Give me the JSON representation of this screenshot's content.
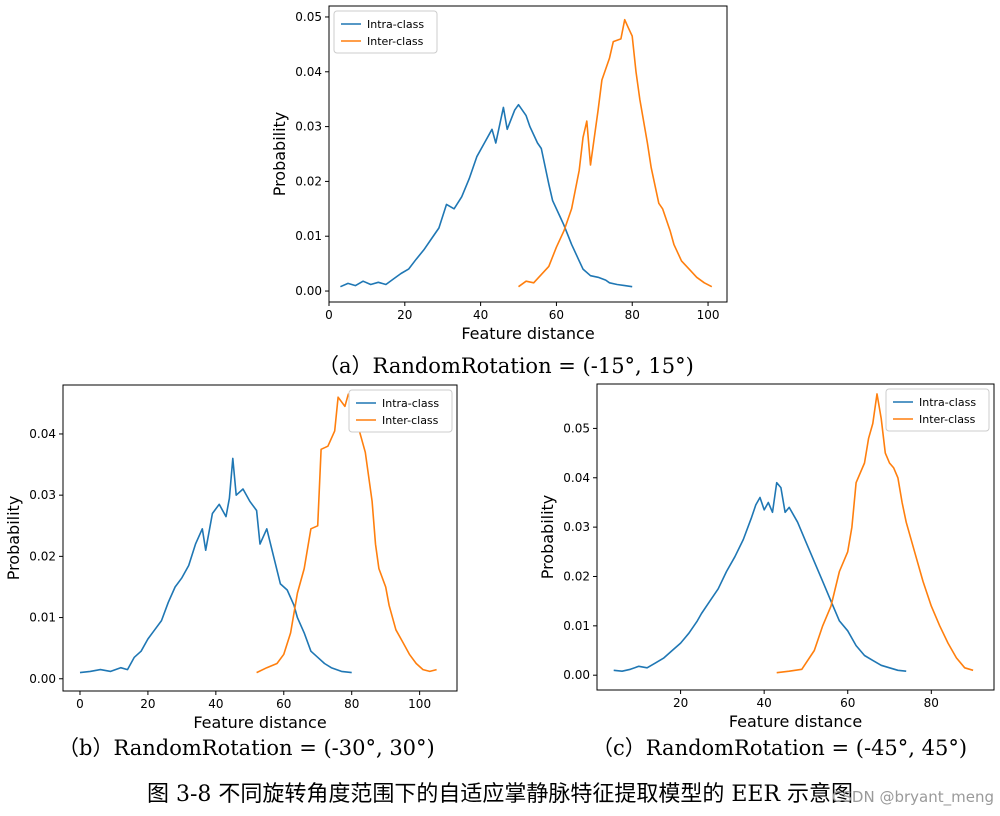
{
  "figure_caption": "图 3-8  不同旋转角度范围下的自适应掌静脉特征提取模型的 EER 示意图",
  "watermark": "CSDN @bryant_meng",
  "colors": {
    "intra": "#1f77b4",
    "inter": "#ff7f0e"
  },
  "chart_data": [
    {
      "id": "a",
      "type": "line",
      "caption": "（a）RandomRotation = (-15°, 15°)",
      "xlabel": "Feature distance",
      "ylabel": "Probability",
      "xlim": [
        0,
        105
      ],
      "ylim": [
        -0.002,
        0.052
      ],
      "xticks": [
        0,
        20,
        40,
        60,
        80,
        100
      ],
      "yticks": [
        0.0,
        0.01,
        0.02,
        0.03,
        0.04,
        0.05
      ],
      "ytick_labels": [
        "0.00",
        "0.01",
        "0.02",
        "0.03",
        "0.04",
        "0.05"
      ],
      "legend": [
        "Intra-class",
        "Inter-class"
      ],
      "series": [
        {
          "name": "Intra-class",
          "color": "#1f77b4",
          "points": [
            [
              3,
              0.0008
            ],
            [
              5,
              0.0014
            ],
            [
              7,
              0.001
            ],
            [
              9,
              0.0018
            ],
            [
              11,
              0.0012
            ],
            [
              13,
              0.0016
            ],
            [
              15,
              0.0012
            ],
            [
              17,
              0.0022
            ],
            [
              19,
              0.0032
            ],
            [
              21,
              0.004
            ],
            [
              23,
              0.0058
            ],
            [
              25,
              0.0075
            ],
            [
              27,
              0.0095
            ],
            [
              29,
              0.0115
            ],
            [
              31,
              0.0158
            ],
            [
              33,
              0.015
            ],
            [
              35,
              0.0172
            ],
            [
              37,
              0.0205
            ],
            [
              39,
              0.0245
            ],
            [
              41,
              0.027
            ],
            [
              43,
              0.0295
            ],
            [
              44,
              0.027
            ],
            [
              46,
              0.0335
            ],
            [
              47,
              0.0295
            ],
            [
              49,
              0.033
            ],
            [
              50,
              0.034
            ],
            [
              52,
              0.032
            ],
            [
              53,
              0.03
            ],
            [
              55,
              0.027
            ],
            [
              56,
              0.026
            ],
            [
              58,
              0.0195
            ],
            [
              59,
              0.0165
            ],
            [
              61,
              0.0135
            ],
            [
              62,
              0.012
            ],
            [
              64,
              0.0085
            ],
            [
              66,
              0.0055
            ],
            [
              67,
              0.004
            ],
            [
              69,
              0.0028
            ],
            [
              71,
              0.0025
            ],
            [
              73,
              0.002
            ],
            [
              74,
              0.0015
            ],
            [
              76,
              0.0012
            ],
            [
              78,
              0.001
            ],
            [
              80,
              0.0008
            ]
          ]
        },
        {
          "name": "Inter-class",
          "color": "#ff7f0e",
          "points": [
            [
              50,
              0.0008
            ],
            [
              52,
              0.0018
            ],
            [
              54,
              0.0015
            ],
            [
              56,
              0.003
            ],
            [
              58,
              0.0045
            ],
            [
              60,
              0.008
            ],
            [
              62,
              0.011
            ],
            [
              64,
              0.015
            ],
            [
              66,
              0.022
            ],
            [
              67,
              0.028
            ],
            [
              68,
              0.031
            ],
            [
              69,
              0.023
            ],
            [
              71,
              0.033
            ],
            [
              72,
              0.0385
            ],
            [
              74,
              0.0425
            ],
            [
              75,
              0.0455
            ],
            [
              77,
              0.046
            ],
            [
              78,
              0.0495
            ],
            [
              79,
              0.048
            ],
            [
              80,
              0.0465
            ],
            [
              81,
              0.04
            ],
            [
              82,
              0.035
            ],
            [
              84,
              0.027
            ],
            [
              85,
              0.0225
            ],
            [
              87,
              0.016
            ],
            [
              88,
              0.015
            ],
            [
              90,
              0.011
            ],
            [
              91,
              0.0085
            ],
            [
              93,
              0.0055
            ],
            [
              95,
              0.004
            ],
            [
              97,
              0.0025
            ],
            [
              99,
              0.0015
            ],
            [
              101,
              0.0008
            ]
          ]
        }
      ]
    },
    {
      "id": "b",
      "type": "line",
      "caption": "（b）RandomRotation = (-30°, 30°)",
      "xlabel": "Feature distance",
      "ylabel": "Probability",
      "xlim": [
        -5,
        111
      ],
      "ylim": [
        -0.002,
        0.048
      ],
      "xticks": [
        0,
        20,
        40,
        60,
        80,
        100
      ],
      "yticks": [
        0.0,
        0.01,
        0.02,
        0.03,
        0.04
      ],
      "ytick_labels": [
        "0.00",
        "0.01",
        "0.02",
        "0.03",
        "0.04"
      ],
      "legend": [
        "Intra-class",
        "Inter-class"
      ],
      "series": [
        {
          "name": "Intra-class",
          "color": "#1f77b4",
          "points": [
            [
              0,
              0.001
            ],
            [
              3,
              0.0012
            ],
            [
              6,
              0.0015
            ],
            [
              9,
              0.0012
            ],
            [
              12,
              0.0018
            ],
            [
              14,
              0.0015
            ],
            [
              16,
              0.0035
            ],
            [
              18,
              0.0045
            ],
            [
              20,
              0.0065
            ],
            [
              22,
              0.008
            ],
            [
              24,
              0.0095
            ],
            [
              26,
              0.0125
            ],
            [
              28,
              0.015
            ],
            [
              30,
              0.0165
            ],
            [
              32,
              0.0185
            ],
            [
              34,
              0.022
            ],
            [
              36,
              0.0245
            ],
            [
              37,
              0.021
            ],
            [
              39,
              0.027
            ],
            [
              41,
              0.0285
            ],
            [
              43,
              0.0265
            ],
            [
              44,
              0.0295
            ],
            [
              45,
              0.036
            ],
            [
              46,
              0.03
            ],
            [
              48,
              0.031
            ],
            [
              50,
              0.029
            ],
            [
              52,
              0.0275
            ],
            [
              53,
              0.022
            ],
            [
              55,
              0.0245
            ],
            [
              57,
              0.02
            ],
            [
              59,
              0.0155
            ],
            [
              61,
              0.0145
            ],
            [
              63,
              0.012
            ],
            [
              64,
              0.01
            ],
            [
              66,
              0.0075
            ],
            [
              68,
              0.0045
            ],
            [
              70,
              0.0035
            ],
            [
              72,
              0.0025
            ],
            [
              74,
              0.0018
            ],
            [
              77,
              0.0012
            ],
            [
              80,
              0.001
            ]
          ]
        },
        {
          "name": "Inter-class",
          "color": "#ff7f0e",
          "points": [
            [
              52,
              0.001
            ],
            [
              55,
              0.0018
            ],
            [
              58,
              0.0025
            ],
            [
              60,
              0.004
            ],
            [
              62,
              0.0075
            ],
            [
              64,
              0.014
            ],
            [
              66,
              0.018
            ],
            [
              68,
              0.0245
            ],
            [
              70,
              0.025
            ],
            [
              71,
              0.0375
            ],
            [
              73,
              0.038
            ],
            [
              75,
              0.0405
            ],
            [
              76,
              0.046
            ],
            [
              78,
              0.0445
            ],
            [
              79,
              0.0465
            ],
            [
              80,
              0.0455
            ],
            [
              82,
              0.041
            ],
            [
              84,
              0.037
            ],
            [
              85,
              0.033
            ],
            [
              86,
              0.029
            ],
            [
              87,
              0.022
            ],
            [
              88,
              0.018
            ],
            [
              90,
              0.015
            ],
            [
              91,
              0.012
            ],
            [
              93,
              0.008
            ],
            [
              95,
              0.006
            ],
            [
              97,
              0.004
            ],
            [
              99,
              0.0025
            ],
            [
              101,
              0.0015
            ],
            [
              103,
              0.0012
            ],
            [
              105,
              0.0015
            ]
          ]
        }
      ]
    },
    {
      "id": "c",
      "type": "line",
      "caption": "（c）RandomRotation = (-45°, 45°)",
      "xlabel": "Feature distance",
      "ylabel": "Probability",
      "xlim": [
        0,
        95
      ],
      "ylim": [
        -0.003,
        0.059
      ],
      "xticks": [
        20,
        40,
        60,
        80
      ],
      "yticks": [
        0.0,
        0.01,
        0.02,
        0.03,
        0.04,
        0.05
      ],
      "ytick_labels": [
        "0.00",
        "0.01",
        "0.02",
        "0.03",
        "0.04",
        "0.05"
      ],
      "legend": [
        "Intra-class",
        "Inter-class"
      ],
      "series": [
        {
          "name": "Intra-class",
          "color": "#1f77b4",
          "points": [
            [
              4,
              0.001
            ],
            [
              6,
              0.0008
            ],
            [
              8,
              0.0012
            ],
            [
              10,
              0.0018
            ],
            [
              12,
              0.0015
            ],
            [
              14,
              0.0025
            ],
            [
              16,
              0.0035
            ],
            [
              18,
              0.005
            ],
            [
              20,
              0.0065
            ],
            [
              22,
              0.0085
            ],
            [
              24,
              0.011
            ],
            [
              25,
              0.0125
            ],
            [
              27,
              0.015
            ],
            [
              29,
              0.0175
            ],
            [
              31,
              0.021
            ],
            [
              33,
              0.024
            ],
            [
              35,
              0.0275
            ],
            [
              37,
              0.032
            ],
            [
              38,
              0.0345
            ],
            [
              39,
              0.036
            ],
            [
              40,
              0.0335
            ],
            [
              41,
              0.035
            ],
            [
              42,
              0.033
            ],
            [
              43,
              0.039
            ],
            [
              44,
              0.038
            ],
            [
              45,
              0.033
            ],
            [
              46,
              0.034
            ],
            [
              48,
              0.031
            ],
            [
              50,
              0.027
            ],
            [
              52,
              0.023
            ],
            [
              54,
              0.019
            ],
            [
              56,
              0.015
            ],
            [
              58,
              0.011
            ],
            [
              60,
              0.009
            ],
            [
              62,
              0.006
            ],
            [
              64,
              0.004
            ],
            [
              66,
              0.003
            ],
            [
              68,
              0.002
            ],
            [
              70,
              0.0015
            ],
            [
              72,
              0.001
            ],
            [
              74,
              0.0008
            ]
          ]
        },
        {
          "name": "Inter-class",
          "color": "#ff7f0e",
          "points": [
            [
              43,
              0.0005
            ],
            [
              46,
              0.0008
            ],
            [
              49,
              0.0012
            ],
            [
              52,
              0.005
            ],
            [
              54,
              0.01
            ],
            [
              56,
              0.014
            ],
            [
              58,
              0.021
            ],
            [
              60,
              0.025
            ],
            [
              61,
              0.03
            ],
            [
              62,
              0.039
            ],
            [
              63,
              0.041
            ],
            [
              64,
              0.043
            ],
            [
              65,
              0.048
            ],
            [
              66,
              0.051
            ],
            [
              67,
              0.057
            ],
            [
              68,
              0.052
            ],
            [
              69,
              0.045
            ],
            [
              70,
              0.043
            ],
            [
              71,
              0.042
            ],
            [
              72,
              0.04
            ],
            [
              73,
              0.035
            ],
            [
              74,
              0.031
            ],
            [
              76,
              0.025
            ],
            [
              78,
              0.019
            ],
            [
              80,
              0.014
            ],
            [
              82,
              0.01
            ],
            [
              84,
              0.0065
            ],
            [
              86,
              0.0035
            ],
            [
              88,
              0.0015
            ],
            [
              90,
              0.001
            ]
          ]
        }
      ]
    }
  ]
}
